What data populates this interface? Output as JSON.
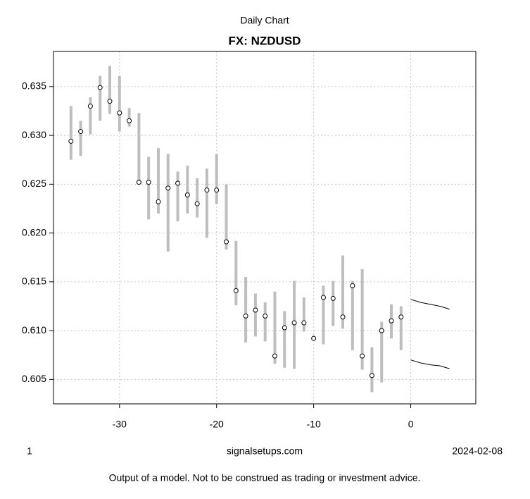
{
  "chart_data": {
    "type": "hilo",
    "subtitle": "Daily Chart",
    "title": "FX: NZDUSD",
    "x": [
      -35,
      -34,
      -33,
      -32,
      -31,
      -30,
      -29,
      -28,
      -27,
      -26,
      -25,
      -24,
      -23,
      -22,
      -21,
      -20,
      -19,
      -18,
      -17,
      -16,
      -15,
      -14,
      -13,
      -12,
      -11,
      -10,
      -9,
      -8,
      -7,
      -6,
      -5,
      -4,
      -3,
      -2,
      -1
    ],
    "close": [
      0.6294,
      0.6304,
      0.633,
      0.6349,
      0.6335,
      0.6323,
      0.6315,
      0.6252,
      0.6252,
      0.6232,
      0.6246,
      0.6251,
      0.6239,
      0.623,
      0.6244,
      0.6244,
      0.6191,
      0.6141,
      0.6115,
      0.6121,
      0.6115,
      0.6074,
      0.6103,
      0.6108,
      0.6108,
      0.6092,
      0.6134,
      0.6133,
      0.6114,
      0.6146,
      0.6074,
      0.6054,
      0.61,
      0.611,
      0.6114
    ],
    "high": [
      0.633,
      0.6315,
      0.6339,
      0.6361,
      0.6371,
      0.6361,
      0.6328,
      0.6323,
      0.6278,
      0.6287,
      0.6281,
      0.6263,
      0.6269,
      0.6256,
      0.6266,
      0.6281,
      0.625,
      0.6192,
      0.6155,
      0.6138,
      0.6129,
      0.614,
      0.612,
      0.6151,
      0.6134,
      0.6095,
      0.6146,
      0.6151,
      0.6177,
      0.6151,
      0.6163,
      0.6083,
      0.6109,
      0.6127,
      0.6125
    ],
    "low": [
      0.6275,
      0.6279,
      0.6301,
      0.6315,
      0.6322,
      0.6304,
      0.6309,
      0.625,
      0.6214,
      0.622,
      0.6181,
      0.6212,
      0.622,
      0.6216,
      0.6195,
      0.623,
      0.6183,
      0.6126,
      0.6088,
      0.6094,
      0.6089,
      0.6066,
      0.6062,
      0.6061,
      0.6099,
      0.609,
      0.6086,
      0.6105,
      0.6102,
      0.608,
      0.606,
      0.6037,
      0.6047,
      0.6092,
      0.608
    ],
    "color": "#bebebe",
    "band": {
      "x": [
        0,
        1,
        2,
        3,
        4
      ],
      "upper": [
        0.6132,
        0.6129,
        0.6127,
        0.6125,
        0.6122
      ],
      "lower": [
        0.607,
        0.6067,
        0.6065,
        0.6064,
        0.6061
      ],
      "color": "#000000"
    },
    "xlim": [
      -36.8,
      6.7
    ],
    "ylim": [
      0.6025,
      0.6386
    ],
    "xticks": [
      -30,
      -20,
      -10,
      0
    ],
    "yticks": [
      0.605,
      {
        "value": 0.61,
        "label": "0.610"
      },
      0.615,
      {
        "value": 0.62,
        "label": "0.620"
      },
      0.625,
      {
        "value": 0.63,
        "label": "0.630"
      },
      0.635
    ],
    "grid": true
  },
  "footer": {
    "left": "1",
    "center": "signalsetups.com",
    "right": "2024-02-08",
    "note": "Output of a model. Not to be construed as trading or investment advice."
  }
}
